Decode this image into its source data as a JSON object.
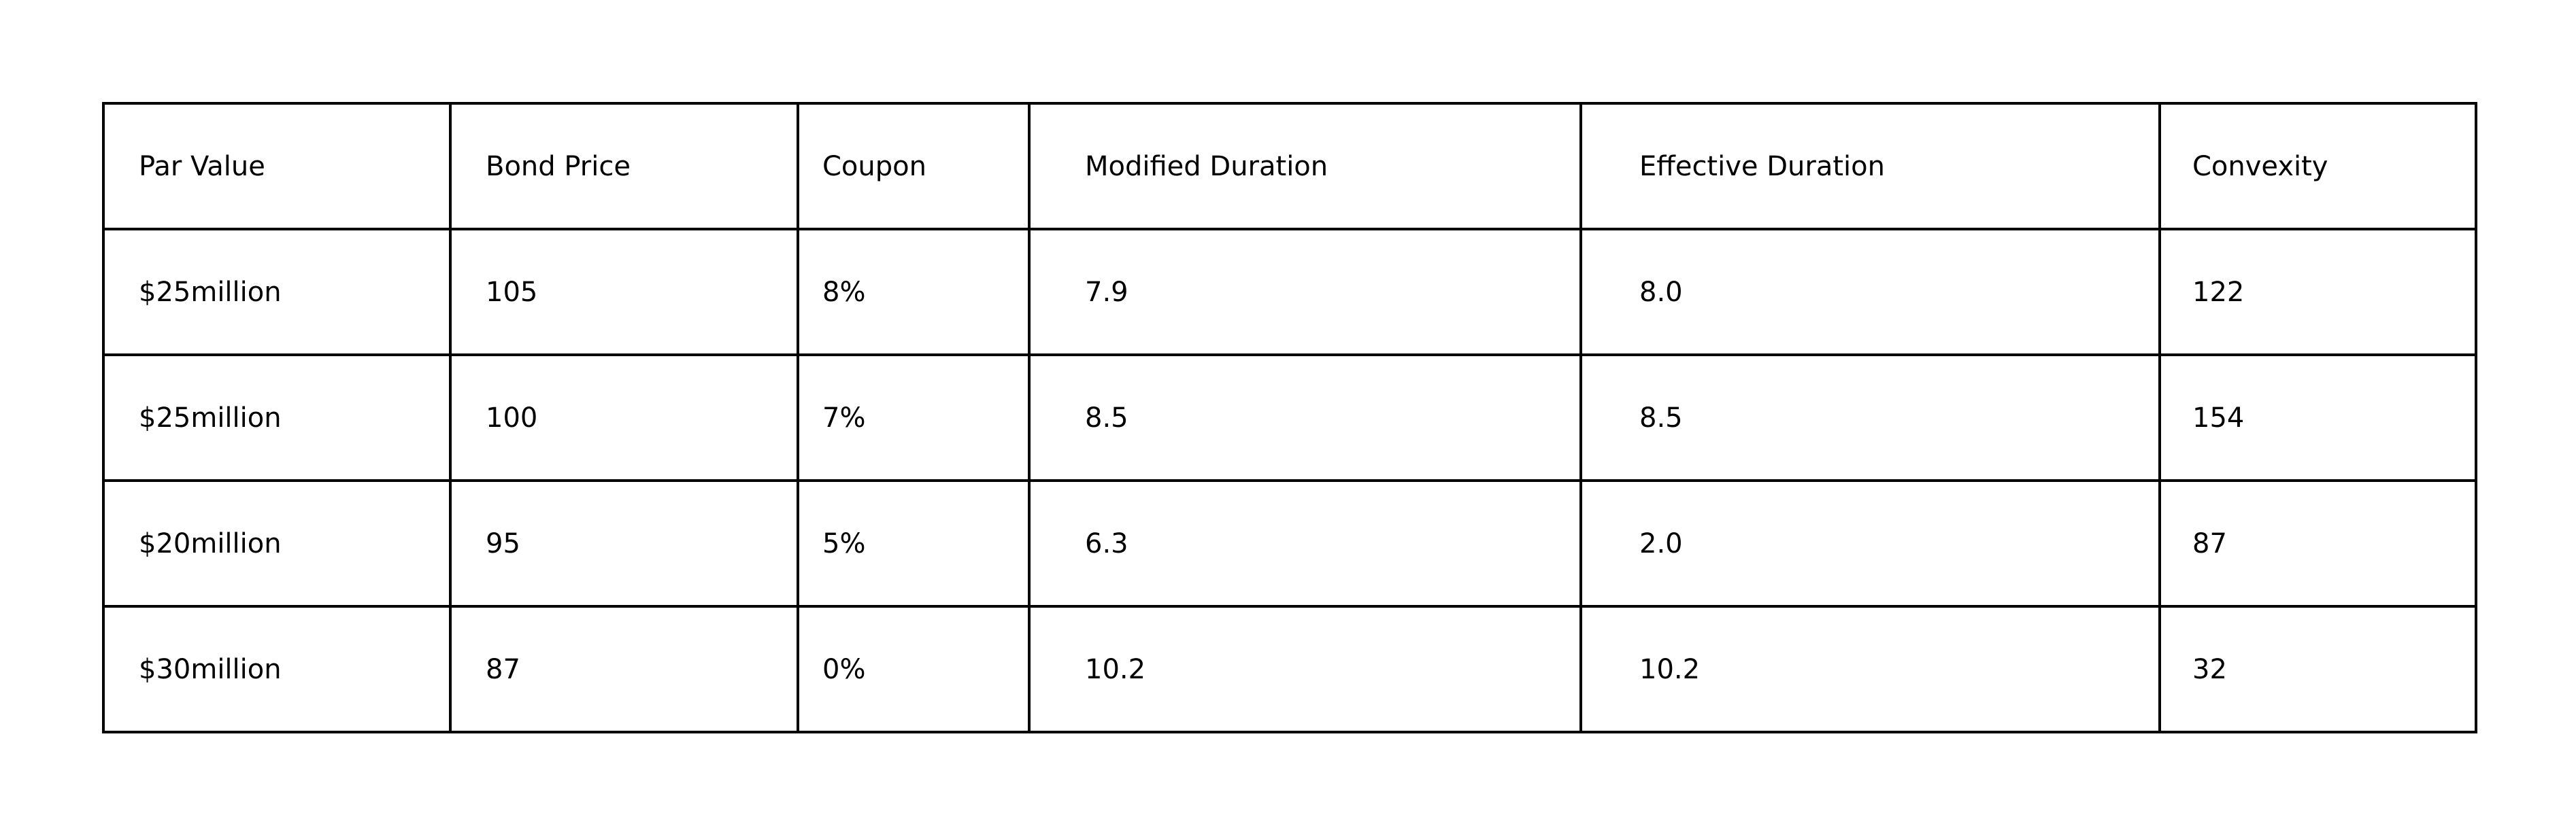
{
  "table": {
    "headers": [
      "Par Value",
      "Bond Price",
      "Coupon",
      "Modified Duration",
      "Effective Duration",
      "Convexity"
    ],
    "rows": [
      [
        "$25million",
        "105",
        "8%",
        "7.9",
        "8.0",
        "122"
      ],
      [
        "$25million",
        "100",
        "7%",
        "8.5",
        "8.5",
        "154"
      ],
      [
        "$20million",
        "95",
        "5%",
        "6.3",
        "2.0",
        "87"
      ],
      [
        "$30million",
        "87",
        "0%",
        "10.2",
        "10.2",
        "32"
      ]
    ]
  }
}
